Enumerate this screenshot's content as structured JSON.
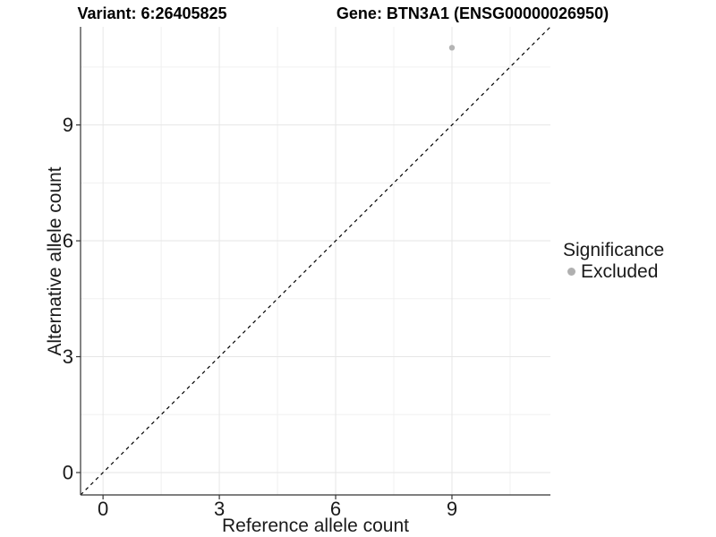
{
  "chart_data": {
    "type": "scatter",
    "title_left": "Variant: 6:26405825",
    "title_right": "Gene: BTN3A1 (ENSG00000026950)",
    "xlabel": "Reference allele count",
    "ylabel": "Alternative allele count",
    "xlim": [
      -0.58,
      11.54
    ],
    "ylim": [
      -0.58,
      11.54
    ],
    "x_major_ticks": [
      0,
      3,
      6,
      9
    ],
    "y_major_ticks": [
      0,
      3,
      6,
      9
    ],
    "x_minor_ticks": [
      1.5,
      4.5,
      7.5,
      10.5
    ],
    "y_minor_ticks": [
      1.5,
      4.5,
      7.5,
      10.5
    ],
    "grid": true,
    "points": [
      {
        "x": 9,
        "y": 11,
        "significance": "Excluded"
      }
    ],
    "reference_line": {
      "type": "identity",
      "equation": "y = x",
      "style": "dashed",
      "color": "#000000"
    },
    "legend": {
      "title": "Significance",
      "position": "right",
      "items": [
        {
          "label": "Excluded",
          "color": "#b0b0b0"
        }
      ]
    },
    "colors": {
      "point": "#b4b4b4",
      "grid_major": "#e6e6e6",
      "grid_minor": "#f0f0f0",
      "axis_line": "#333333",
      "tick_mark": "#333333",
      "tick_text": "#1a1a1a",
      "background": "#ffffff"
    }
  }
}
